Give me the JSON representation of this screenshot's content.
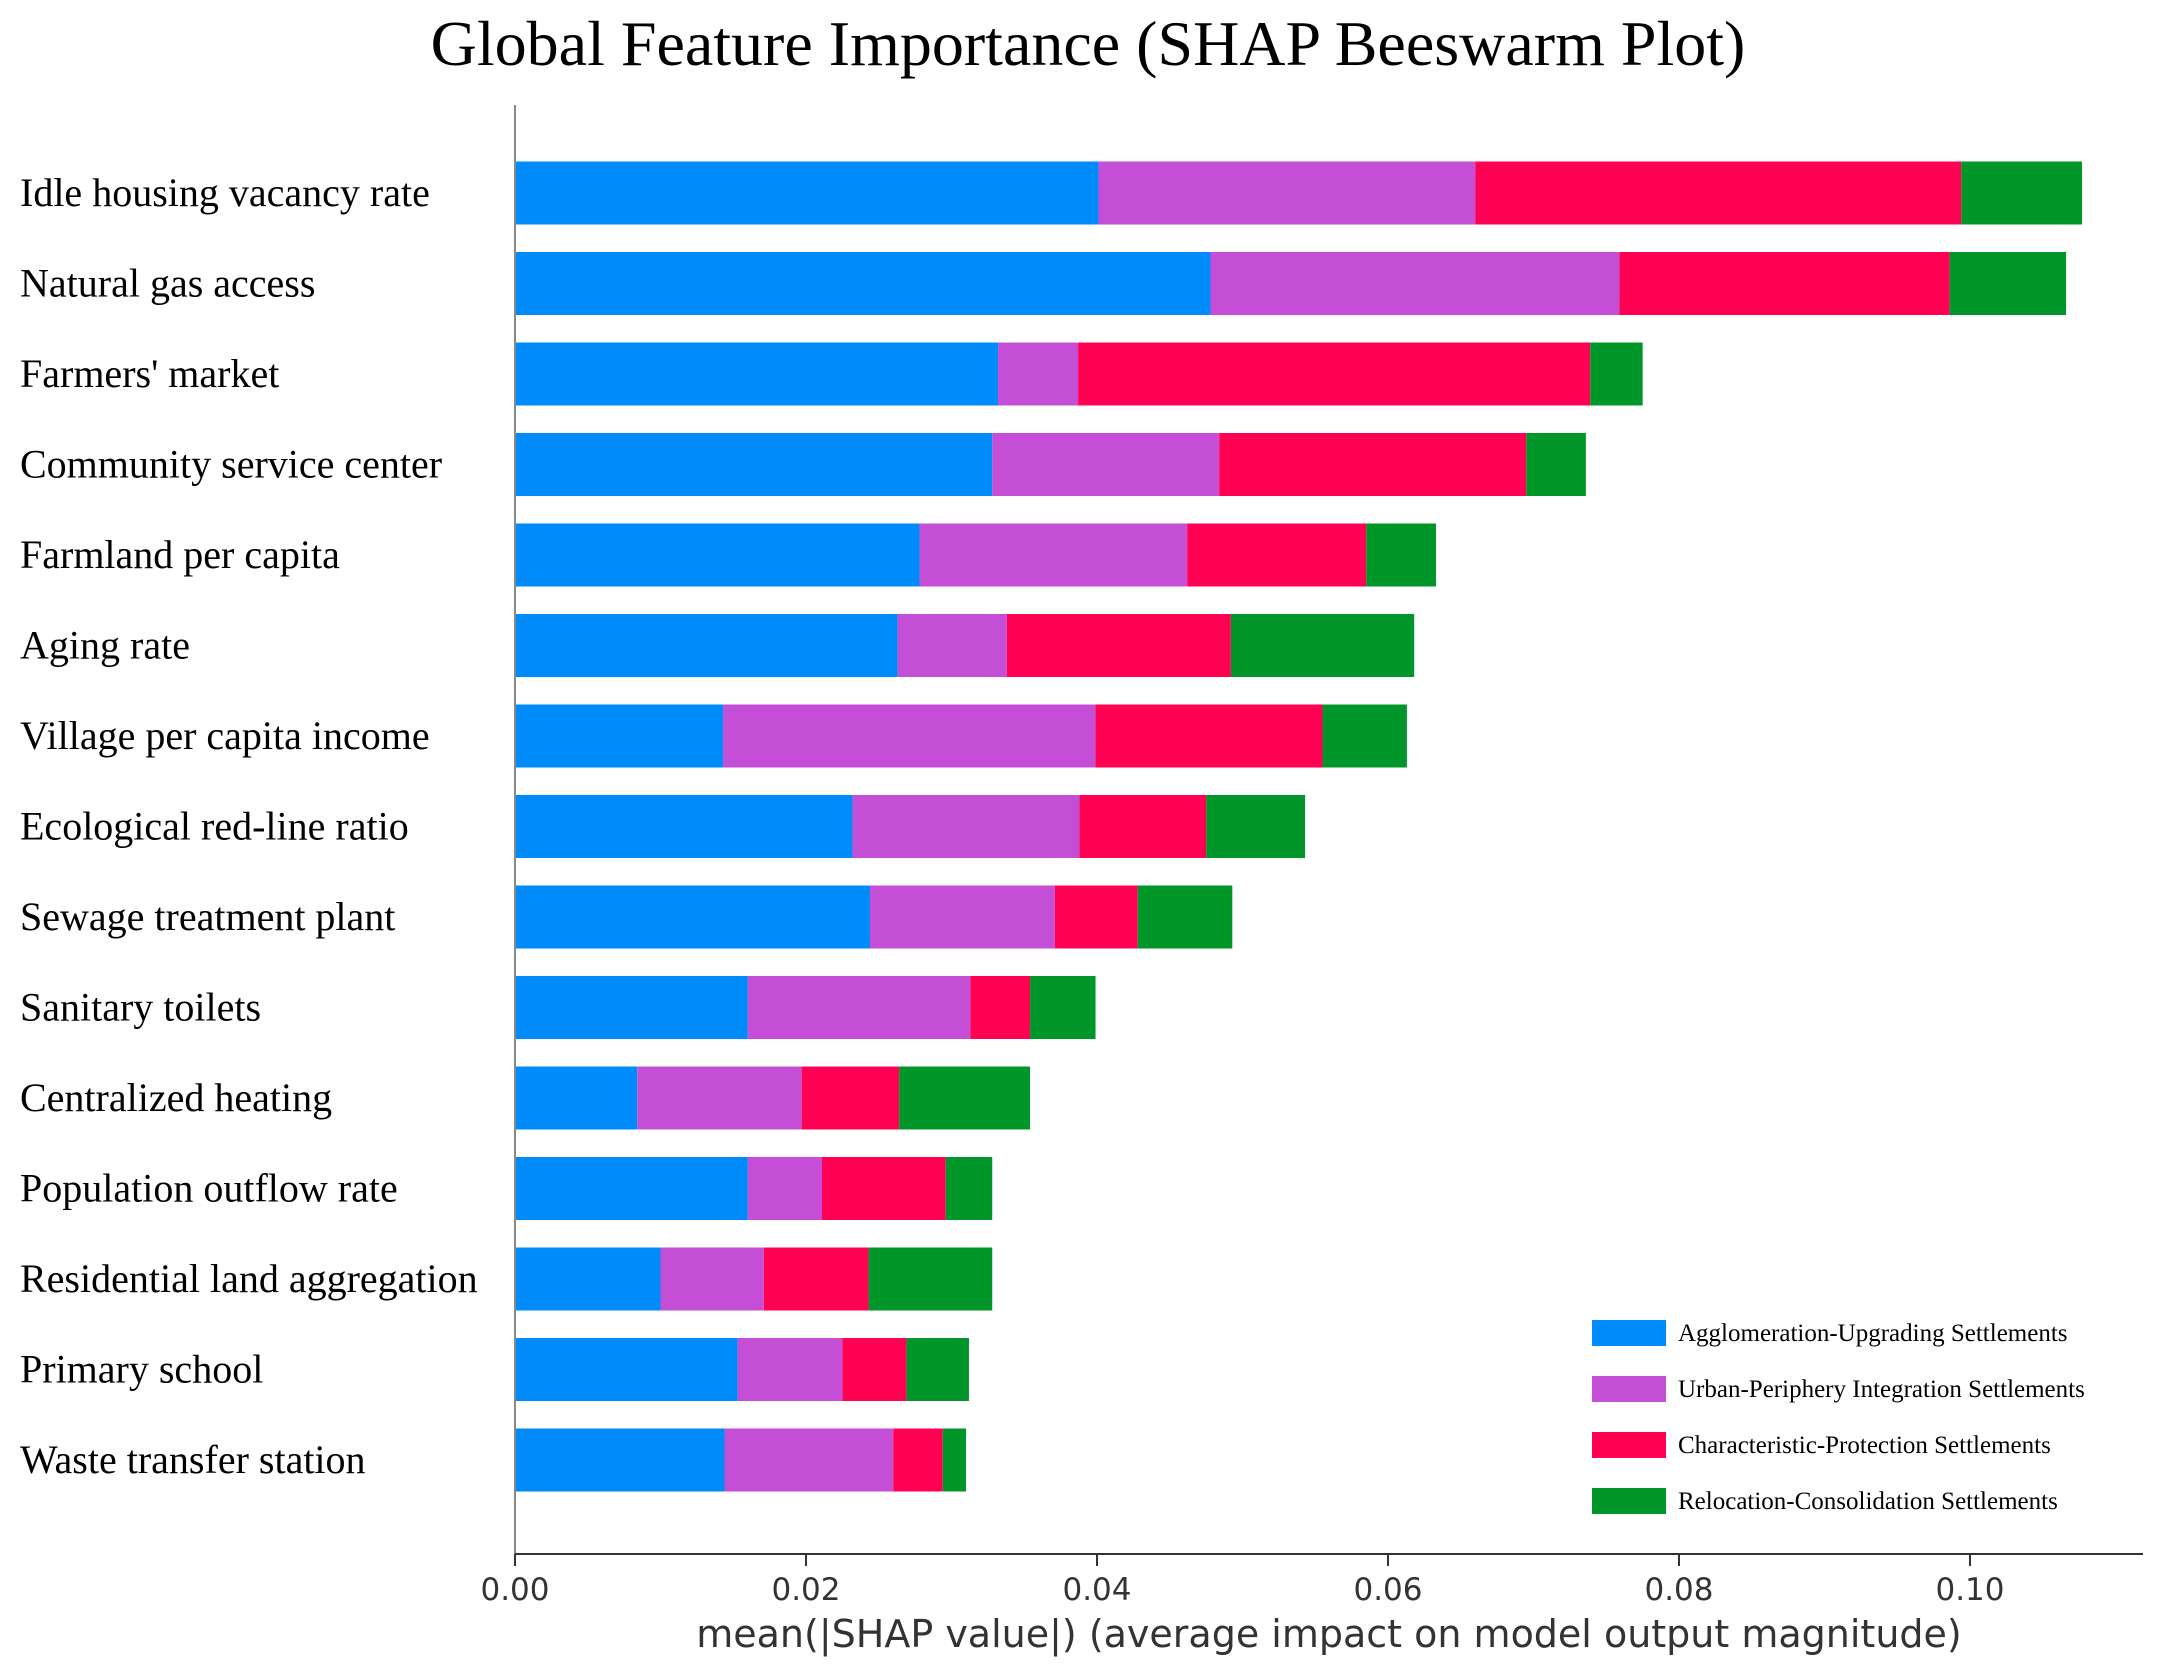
{
  "chart_data": {
    "type": "bar",
    "orientation": "horizontal",
    "stacked": true,
    "title": "Global Feature Importance (SHAP Beeswarm Plot)",
    "xlabel": "mean(|SHAP value|) (average impact on model output magnitude)",
    "ylabel": "",
    "xlim": [
      0,
      0.112
    ],
    "xticks": [
      "0.00",
      "0.02",
      "0.04",
      "0.06",
      "0.08",
      "0.10"
    ],
    "grid": false,
    "legend_position": "bottom-right",
    "categories": [
      "Idle housing vacancy rate",
      "Natural gas access",
      "Farmers' market",
      "Community service center",
      "Farmland per capita",
      "Aging rate",
      "Village per capita income",
      "Ecological red-line ratio",
      "Sewage treatment plant",
      "Sanitary toilets",
      "Centralized heating",
      "Population outflow rate",
      "Residential land aggregation",
      "Primary school",
      "Waste transfer station"
    ],
    "series": [
      {
        "name": "Agglomeration-Upgrading Settlements",
        "color": "#008bfb",
        "values": [
          0.0401,
          0.0478,
          0.0332,
          0.0328,
          0.0278,
          0.0263,
          0.0143,
          0.0232,
          0.0244,
          0.016,
          0.0084,
          0.016,
          0.01,
          0.0153,
          0.0144
        ]
      },
      {
        "name": "Urban-Periphery Integration Settlements",
        "color": "#c44fd6",
        "values": [
          0.0259,
          0.0281,
          0.0055,
          0.0156,
          0.0184,
          0.0075,
          0.0256,
          0.0156,
          0.0127,
          0.0153,
          0.0113,
          0.0051,
          0.0071,
          0.0072,
          0.0116
        ]
      },
      {
        "name": "Characteristic-Protection Settlements",
        "color": "#ff0052",
        "values": [
          0.0334,
          0.0227,
          0.0352,
          0.0211,
          0.0123,
          0.0154,
          0.0156,
          0.0087,
          0.0057,
          0.0041,
          0.0067,
          0.0085,
          0.0072,
          0.0044,
          0.0034
        ]
      },
      {
        "name": "Relocation-Consolidation Settlements",
        "color": "#00962a",
        "values": [
          0.0083,
          0.008,
          0.0036,
          0.0041,
          0.0048,
          0.0126,
          0.0058,
          0.0068,
          0.0065,
          0.0045,
          0.009,
          0.0032,
          0.0085,
          0.0043,
          0.0016
        ]
      }
    ]
  }
}
